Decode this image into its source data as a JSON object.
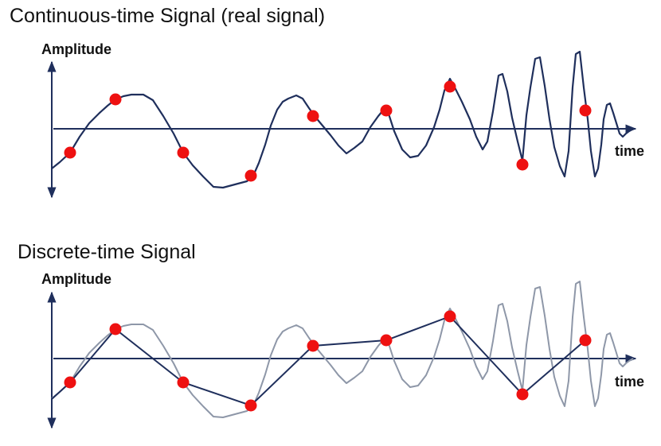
{
  "panels": {
    "top": {
      "title": "Continuous-time Signal (real signal)",
      "y_label": "Amplitude",
      "x_label": "time"
    },
    "bottom": {
      "title": "Discrete-time Signal",
      "y_label": "Amplitude",
      "x_label": "time"
    }
  },
  "colors": {
    "axis": "#1f2f5c",
    "signal": "#1f2f5c",
    "ghost_signal": "#8e97a8",
    "sample": "#ee1111",
    "sample_link": "#1f2f5c"
  }
}
